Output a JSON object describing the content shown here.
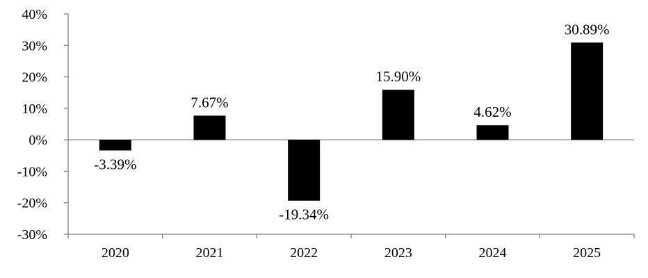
{
  "chart_data": {
    "type": "bar",
    "categories": [
      "2020",
      "2021",
      "2022",
      "2023",
      "2024",
      "2025"
    ],
    "values": [
      -3.39,
      7.67,
      -19.34,
      15.9,
      4.62,
      30.89
    ],
    "value_labels": [
      "-3.39%",
      "7.67%",
      "-19.34%",
      "15.90%",
      "4.62%",
      "30.89%"
    ],
    "ylim": [
      -30,
      40
    ],
    "y_ticks": [
      40,
      30,
      20,
      10,
      0,
      -10,
      -20,
      -30
    ],
    "y_tick_labels": [
      "40%",
      "30%",
      "20%",
      "10%",
      "0%",
      "-10%",
      "-20%",
      "-30%"
    ],
    "title": "",
    "xlabel": "",
    "ylabel": "",
    "grid": false,
    "legend": "none",
    "bar_color": "#000000",
    "axis_color": "#808080"
  }
}
